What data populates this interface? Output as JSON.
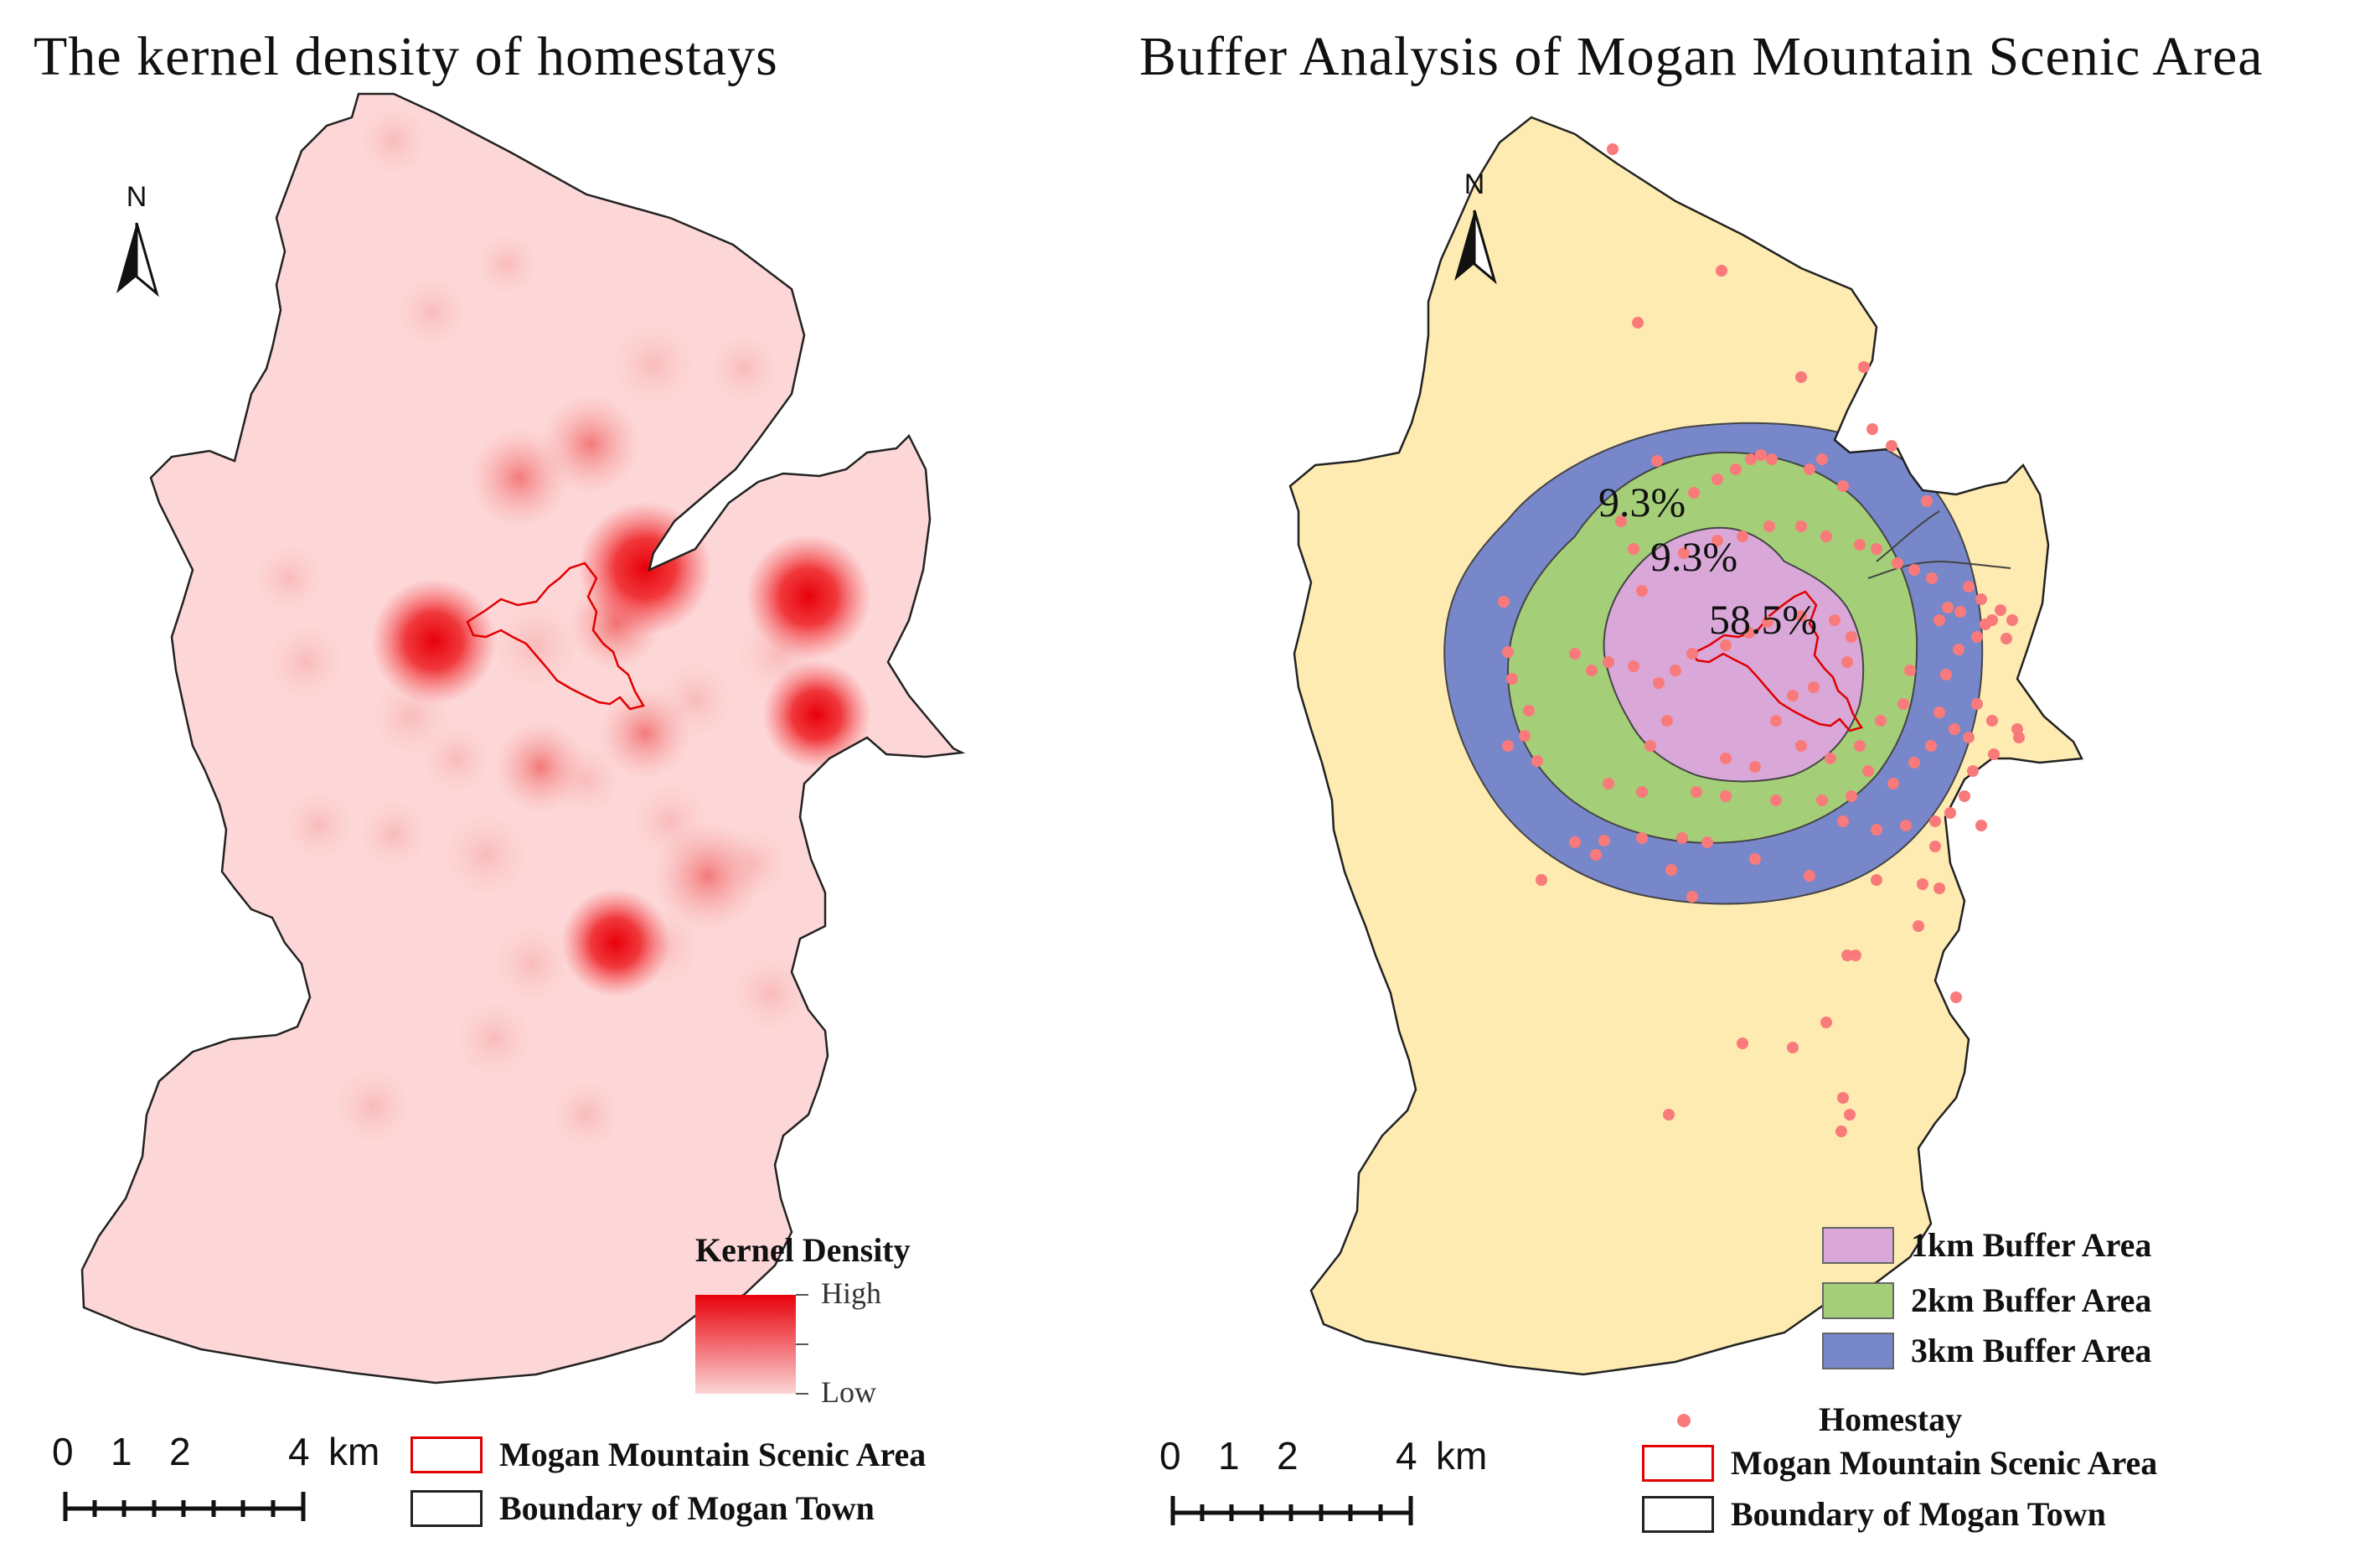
{
  "left_map": {
    "title": "The kernel density of homestays",
    "north_label": "N",
    "legend": {
      "title": "Kernel Density",
      "high_label": "High",
      "low_label": "Low",
      "high_color": "#e8000a",
      "low_color": "#fcd5d6",
      "scenic_area_label": "Mogan Mountain Scenic Area",
      "town_boundary_label": "Boundary of Mogan Town"
    },
    "scale": {
      "ticks": [
        "0",
        "1",
        "2",
        "4"
      ],
      "unit": "km"
    }
  },
  "right_map": {
    "title": "Buffer Analysis of Mogan Mountain Scenic Area",
    "north_label": "N",
    "percentages": {
      "outer": "9.3%",
      "middle": "9.3%",
      "inner": "58.5%"
    },
    "legend": {
      "buffer_1km_label": "1km Buffer Area",
      "buffer_2km_label": "2km Buffer Area",
      "buffer_3km_label": "3km Buffer Area",
      "homestay_label": "Homestay",
      "scenic_area_label": "Mogan Mountain Scenic Area",
      "town_boundary_label": "Boundary of Mogan Town"
    },
    "scale": {
      "ticks": [
        "0",
        "1",
        "2",
        "4"
      ],
      "unit": "km"
    }
  },
  "colors": {
    "town_fill_left": "#fdd7d7",
    "town_fill_right": "#feebb2",
    "buffer_1km": "#d9a8d8",
    "buffer_2km": "#a5ce78",
    "buffer_3km": "#7787c9",
    "homestay_dot": "#f97a7a",
    "scenic_outline": "#e00000",
    "boundary_outline": "#222222"
  }
}
